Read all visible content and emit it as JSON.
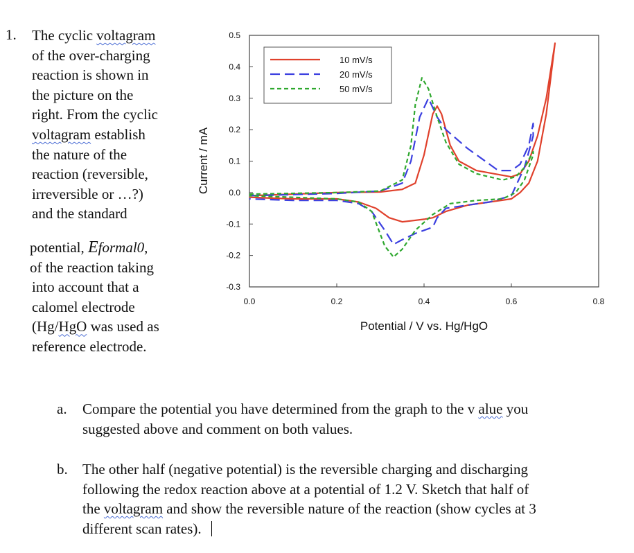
{
  "question": {
    "number": "1.",
    "intro_lines": [
      "The cyclic voltagram",
      "of the over-charging",
      "reaction is shown in",
      "the picture on the",
      "right. From the cyclic",
      "voltagram establish",
      "the nature of the",
      "reaction (reversible,",
      "irreversible or …?)",
      "and the standard"
    ],
    "potential_prefix": "potential, ",
    "potential_symbol": "E",
    "potential_sub": "formal0",
    "potential_suffix": ",",
    "rest_lines": [
      "of the reaction taking",
      "into account that a",
      "calomel electrode",
      "(Hg/HgO was used as",
      "reference electrode."
    ],
    "spellcheck_words": [
      "voltagram",
      "HgO",
      "alue"
    ]
  },
  "parts": [
    {
      "label": "a.",
      "lines": [
        "Compare the potential you have determined from the graph to the v alue you",
        "suggested above and comment on both values."
      ]
    },
    {
      "label": "b.",
      "lines": [
        "The other half (negative potential) is the reversible charging and discharging",
        "following the redox reaction above at a potential of 1.2 V. Sketch that half of",
        "the voltagram and show the reversible nature of the reaction (show cycles at 3",
        "different scan rates)."
      ]
    }
  ],
  "chart_data": {
    "type": "line",
    "title": "",
    "xlabel": "Potential / V vs. Hg/HgO",
    "ylabel": "Current / mA",
    "xlim": [
      0.0,
      0.8
    ],
    "ylim": [
      -0.3,
      0.5
    ],
    "xticks": [
      "0.0",
      "0.2",
      "0.4",
      "0.6",
      "0.8"
    ],
    "yticks": [
      "0.5",
      "0.4",
      "0.3",
      "0.2",
      "0.1",
      "0.0",
      "-0.1",
      "-0.2",
      "-0.3"
    ],
    "grid": false,
    "legend": "top-left",
    "series": [
      {
        "name": "10 mV/s",
        "color": "#e0412c",
        "dash": "solid",
        "x": [
          0,
          0.2,
          0.3,
          0.35,
          0.38,
          0.4,
          0.42,
          0.43,
          0.44,
          0.46,
          0.48,
          0.52,
          0.56,
          0.6,
          0.62,
          0.64,
          0.66,
          0.68,
          0.7,
          0.68,
          0.66,
          0.64,
          0.62,
          0.6,
          0.55,
          0.5,
          0.45,
          0.42,
          0.4,
          0.37,
          0.35,
          0.32,
          0.29,
          0.25,
          0.2,
          0.1,
          0
        ],
        "y": [
          -0.01,
          0,
          0.002,
          0.01,
          0.03,
          0.12,
          0.25,
          0.275,
          0.25,
          0.15,
          0.1,
          0.07,
          0.06,
          0.05,
          0.06,
          0.1,
          0.18,
          0.3,
          0.475,
          0.25,
          0.1,
          0.03,
          0.0,
          -0.02,
          -0.03,
          -0.04,
          -0.06,
          -0.08,
          -0.085,
          -0.09,
          -0.093,
          -0.08,
          -0.05,
          -0.03,
          -0.02,
          -0.02,
          -0.015
        ]
      },
      {
        "name": "20 mV/s",
        "color": "#3b3fe0",
        "dash": "long-dash",
        "x": [
          0,
          0.2,
          0.3,
          0.35,
          0.37,
          0.39,
          0.41,
          0.43,
          0.45,
          0.5,
          0.55,
          0.57,
          0.6,
          0.62,
          0.64,
          0.65,
          0.65,
          0.63,
          0.61,
          0.6,
          0.55,
          0.5,
          0.45,
          0.43,
          0.42,
          0.38,
          0.35,
          0.33,
          0.31,
          0.28,
          0.25,
          0.2,
          0.1,
          0
        ],
        "y": [
          -0.01,
          -0.003,
          0.005,
          0.03,
          0.1,
          0.24,
          0.3,
          0.24,
          0.2,
          0.14,
          0.09,
          0.07,
          0.07,
          0.09,
          0.15,
          0.22,
          0.18,
          0.08,
          0.02,
          -0.01,
          -0.03,
          -0.04,
          -0.05,
          -0.08,
          -0.11,
          -0.13,
          -0.15,
          -0.165,
          -0.12,
          -0.06,
          -0.035,
          -0.025,
          -0.025,
          -0.02
        ]
      },
      {
        "name": "50 mV/s",
        "color": "#2fa82f",
        "dash": "short-dash",
        "x": [
          0,
          0.2,
          0.3,
          0.35,
          0.37,
          0.38,
          0.395,
          0.41,
          0.43,
          0.45,
          0.48,
          0.52,
          0.58,
          0.61,
          0.63,
          0.65,
          0.65,
          0.63,
          0.61,
          0.58,
          0.52,
          0.46,
          0.42,
          0.38,
          0.35,
          0.33,
          0.31,
          0.28,
          0.25,
          0.2,
          0
        ],
        "y": [
          -0.005,
          0,
          0.005,
          0.04,
          0.15,
          0.28,
          0.365,
          0.33,
          0.24,
          0.16,
          0.09,
          0.06,
          0.04,
          0.05,
          0.08,
          0.13,
          0.12,
          0.04,
          0.0,
          -0.02,
          -0.025,
          -0.035,
          -0.07,
          -0.12,
          -0.18,
          -0.205,
          -0.17,
          -0.06,
          -0.03,
          -0.02,
          -0.01
        ]
      }
    ]
  }
}
